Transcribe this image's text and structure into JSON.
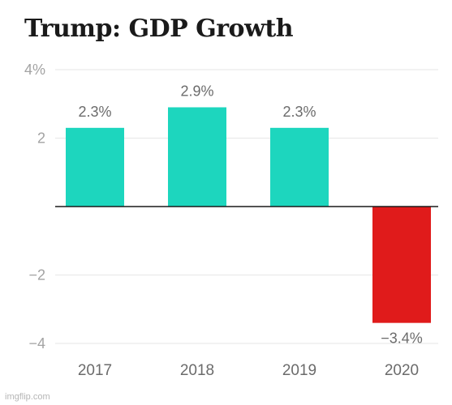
{
  "title": "Trump: GDP Growth",
  "watermark": "imgflip.com",
  "colors": {
    "positive": "#1dd6be",
    "negative": "#e01b1b",
    "grid": "#e6e6e6",
    "zero_line": "#1a1a1a",
    "tick_text": "#a3a3a3",
    "label_text": "#6b6b6b"
  },
  "chart_data": {
    "type": "bar",
    "title": "Trump: GDP Growth",
    "xlabel": "",
    "ylabel": "",
    "categories": [
      "2017",
      "2018",
      "2019",
      "2020"
    ],
    "values": [
      2.3,
      2.9,
      2.3,
      -3.4
    ],
    "data_labels": [
      "2.3%",
      "2.9%",
      "2.3%",
      "−3.4%"
    ],
    "ylim": [
      -4,
      4
    ],
    "yticks": [
      4,
      2,
      -2,
      -4
    ],
    "ytick_labels": [
      "4%",
      "2",
      "−2",
      "−4"
    ],
    "grid": true,
    "legend": "none"
  }
}
